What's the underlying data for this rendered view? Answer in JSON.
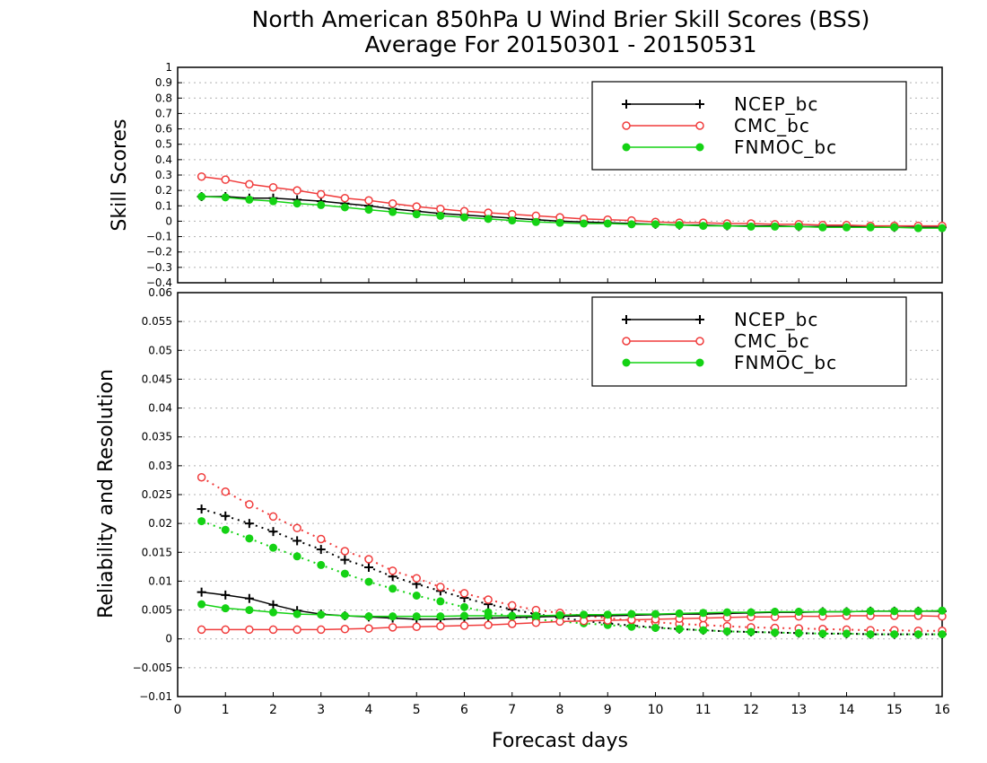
{
  "title_line1": "North American 850hPa U Wind Brier Skill Scores (BSS)",
  "title_line2": "Average For 20150301 - 20150531",
  "xlabel": "Forecast days",
  "ylabel_top": "Skill Scores",
  "ylabel_bottom": "Reliability and Resolution",
  "colors": {
    "NCEP_bc": "#000000",
    "CMC_bc": "#f03c3c",
    "FNMOC_bc": "#14d214"
  },
  "chart_data": [
    {
      "type": "line",
      "panel": "top",
      "ylabel": "Skill Scores",
      "xlim": [
        0,
        16
      ],
      "ylim": [
        -0.4,
        1
      ],
      "xticks": [
        "0",
        "1",
        "2",
        "3",
        "4",
        "5",
        "6",
        "7",
        "8",
        "9",
        "10",
        "11",
        "12",
        "13",
        "14",
        "15",
        "16"
      ],
      "yticks": [
        "1",
        "0.9",
        "0.8",
        "0.7",
        "0.6",
        "0.5",
        "0.4",
        "0.3",
        "0.2",
        "0.1",
        "0",
        "−0.1",
        "−0.2",
        "−0.3",
        "−0.4"
      ],
      "grid": true,
      "legend_position": "top-right",
      "x": [
        0.5,
        1,
        1.5,
        2,
        2.5,
        3,
        3.5,
        4,
        4.5,
        5,
        5.5,
        6,
        6.5,
        7,
        7.5,
        8,
        8.5,
        9,
        9.5,
        10,
        10.5,
        11,
        11.5,
        12,
        12.5,
        13,
        13.5,
        14,
        14.5,
        15,
        15.5,
        16
      ],
      "series": [
        {
          "name": "NCEP_bc",
          "marker": "plus",
          "style": "solid",
          "values": [
            0.16,
            0.16,
            0.15,
            0.15,
            0.14,
            0.13,
            0.115,
            0.1,
            0.08,
            0.065,
            0.05,
            0.04,
            0.03,
            0.02,
            0.01,
            0.0,
            -0.005,
            -0.01,
            -0.015,
            -0.02,
            -0.025,
            -0.025,
            -0.03,
            -0.03,
            -0.03,
            -0.035,
            -0.035,
            -0.035,
            -0.035,
            -0.04,
            -0.04,
            -0.04
          ]
        },
        {
          "name": "CMC_bc",
          "marker": "open-circle",
          "style": "solid",
          "values": [
            0.29,
            0.27,
            0.24,
            0.22,
            0.2,
            0.175,
            0.15,
            0.135,
            0.115,
            0.095,
            0.08,
            0.065,
            0.055,
            0.045,
            0.035,
            0.025,
            0.015,
            0.01,
            0.005,
            -0.005,
            -0.01,
            -0.01,
            -0.015,
            -0.015,
            -0.02,
            -0.02,
            -0.025,
            -0.025,
            -0.03,
            -0.03,
            -0.03,
            -0.03
          ]
        },
        {
          "name": "FNMOC_bc",
          "marker": "filled-circle",
          "style": "solid",
          "values": [
            0.16,
            0.155,
            0.14,
            0.13,
            0.115,
            0.105,
            0.09,
            0.075,
            0.06,
            0.045,
            0.035,
            0.025,
            0.015,
            0.005,
            -0.005,
            -0.01,
            -0.015,
            -0.015,
            -0.02,
            -0.02,
            -0.025,
            -0.03,
            -0.03,
            -0.035,
            -0.035,
            -0.035,
            -0.04,
            -0.04,
            -0.04,
            -0.04,
            -0.045,
            -0.045
          ]
        }
      ]
    },
    {
      "type": "line",
      "panel": "bottom",
      "ylabel": "Reliability and Resolution",
      "xlabel": "Forecast days",
      "xlim": [
        0,
        16
      ],
      "ylim": [
        -0.01,
        0.06
      ],
      "xticks": [
        "0",
        "1",
        "2",
        "3",
        "4",
        "5",
        "6",
        "7",
        "8",
        "9",
        "10",
        "11",
        "12",
        "13",
        "14",
        "15",
        "16"
      ],
      "yticks": [
        "0.06",
        "0.055",
        "0.05",
        "0.045",
        "0.04",
        "0.035",
        "0.03",
        "0.025",
        "0.02",
        "0.015",
        "0.01",
        "0.005",
        "0",
        "−0.005",
        "−0.01"
      ],
      "grid": true,
      "legend_position": "top-right",
      "x": [
        0.5,
        1,
        1.5,
        2,
        2.5,
        3,
        3.5,
        4,
        4.5,
        5,
        5.5,
        6,
        6.5,
        7,
        7.5,
        8,
        8.5,
        9,
        9.5,
        10,
        10.5,
        11,
        11.5,
        12,
        12.5,
        13,
        13.5,
        14,
        14.5,
        15,
        15.5,
        16
      ],
      "series": [
        {
          "name": "NCEP_bc",
          "marker": "plus",
          "style": "solid",
          "values": [
            0.0081,
            0.0076,
            0.007,
            0.0059,
            0.0049,
            0.0043,
            0.004,
            0.0038,
            0.0036,
            0.0034,
            0.0034,
            0.0035,
            0.0036,
            0.0037,
            0.0038,
            0.0039,
            0.004,
            0.004,
            0.0041,
            0.0042,
            0.0043,
            0.0043,
            0.0044,
            0.0045,
            0.0046,
            0.0046,
            0.0047,
            0.0047,
            0.0048,
            0.0048,
            0.0048,
            0.0048
          ]
        },
        {
          "name": "NCEP_bc",
          "marker": "plus",
          "style": "dotted",
          "values": [
            0.0225,
            0.0213,
            0.02,
            0.0186,
            0.017,
            0.0155,
            0.0137,
            0.0124,
            0.0108,
            0.0095,
            0.0083,
            0.0071,
            0.006,
            0.0051,
            0.0043,
            0.0037,
            0.0031,
            0.0027,
            0.0023,
            0.002,
            0.0017,
            0.0015,
            0.0013,
            0.0012,
            0.0011,
            0.001,
            0.0009,
            0.0009,
            0.0008,
            0.0008,
            0.0008,
            0.0008
          ]
        },
        {
          "name": "CMC_bc",
          "marker": "open-circle",
          "style": "solid",
          "values": [
            0.0016,
            0.0016,
            0.0016,
            0.0016,
            0.0016,
            0.0016,
            0.0017,
            0.0018,
            0.002,
            0.0021,
            0.0022,
            0.0023,
            0.0024,
            0.0026,
            0.0028,
            0.003,
            0.0031,
            0.0032,
            0.0033,
            0.0034,
            0.0035,
            0.0036,
            0.0037,
            0.0038,
            0.0038,
            0.0039,
            0.0039,
            0.004,
            0.004,
            0.004,
            0.004,
            0.0039
          ]
        },
        {
          "name": "CMC_bc",
          "marker": "open-circle",
          "style": "dotted",
          "values": [
            0.028,
            0.0255,
            0.0233,
            0.0212,
            0.0192,
            0.0173,
            0.0152,
            0.0138,
            0.0118,
            0.0105,
            0.009,
            0.0079,
            0.0068,
            0.0058,
            0.005,
            0.0045,
            0.004,
            0.0036,
            0.0032,
            0.0029,
            0.0026,
            0.0024,
            0.0022,
            0.002,
            0.0019,
            0.0018,
            0.0017,
            0.0016,
            0.0015,
            0.0015,
            0.0014,
            0.0014
          ]
        },
        {
          "name": "FNMOC_bc",
          "marker": "filled-circle",
          "style": "solid",
          "values": [
            0.006,
            0.0053,
            0.005,
            0.0046,
            0.0043,
            0.0042,
            0.004,
            0.0039,
            0.0039,
            0.0039,
            0.0039,
            0.004,
            0.004,
            0.004,
            0.004,
            0.0041,
            0.0042,
            0.0042,
            0.0043,
            0.0043,
            0.0044,
            0.0045,
            0.0046,
            0.0046,
            0.0047,
            0.0047,
            0.0047,
            0.0047,
            0.0048,
            0.0048,
            0.0048,
            0.0049
          ]
        },
        {
          "name": "FNMOC_bc",
          "marker": "filled-circle",
          "style": "dotted",
          "values": [
            0.0204,
            0.0189,
            0.0174,
            0.0158,
            0.0143,
            0.0128,
            0.0113,
            0.0099,
            0.0087,
            0.0075,
            0.0065,
            0.0055,
            0.0046,
            0.0039,
            0.0034,
            0.003,
            0.0027,
            0.0024,
            0.0021,
            0.0019,
            0.0017,
            0.0015,
            0.0013,
            0.0012,
            0.0011,
            0.001,
            0.0009,
            0.0009,
            0.0008,
            0.0008,
            0.0008,
            0.0008
          ]
        }
      ]
    }
  ]
}
